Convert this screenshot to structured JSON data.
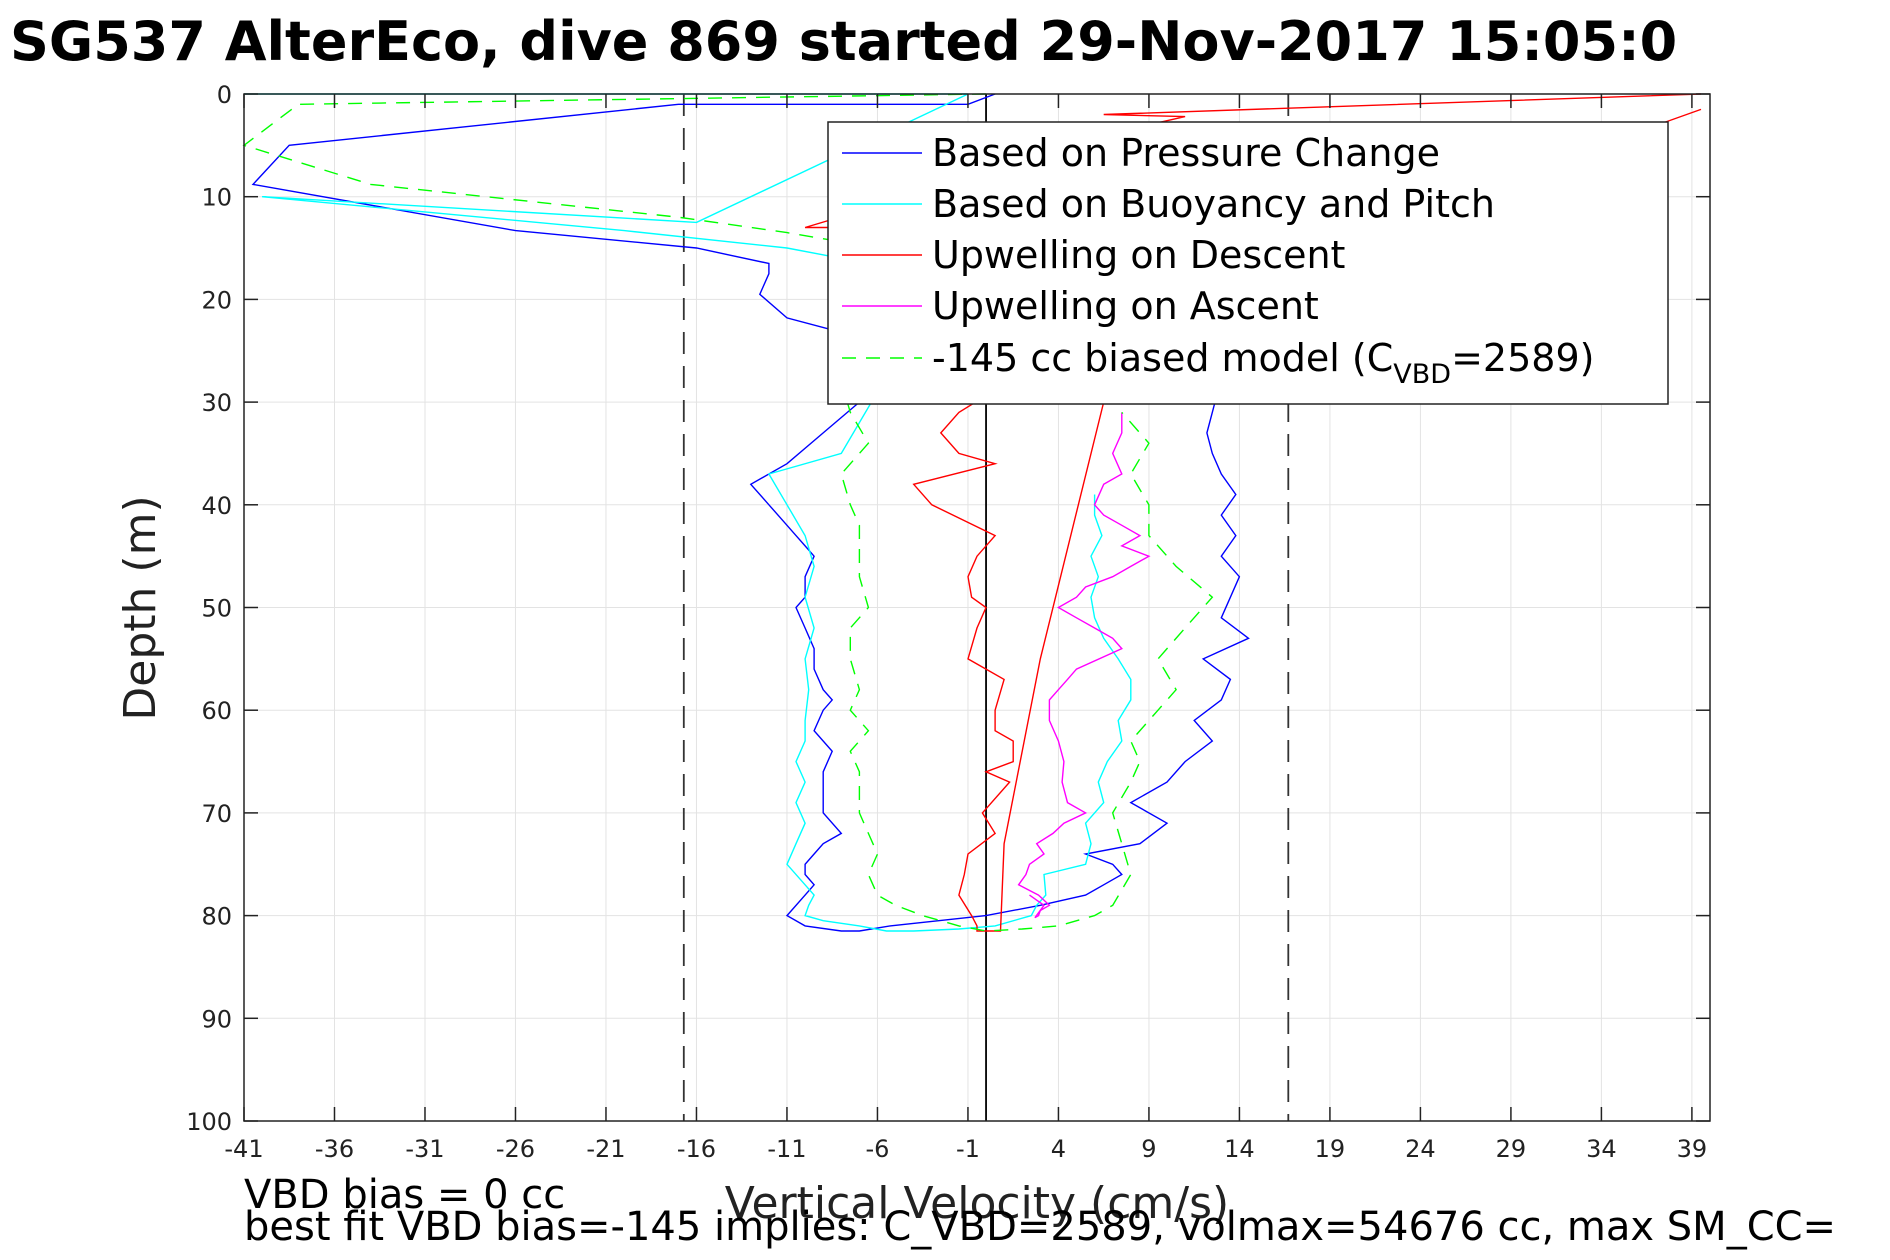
{
  "chart_data": {
    "type": "line",
    "title": "SG537 AlterEco, dive 869 started 29-Nov-2017 15:05:0",
    "xlabel": "Vertical Velocity (cm/s)",
    "ylabel": "Depth (m)",
    "xlim": [
      -41,
      40
    ],
    "ylim": [
      100,
      0
    ],
    "x_ticks": [
      -41,
      -36,
      -31,
      -26,
      -21,
      -16,
      -11,
      -6,
      -1,
      4,
      9,
      14,
      19,
      24,
      29,
      34,
      39
    ],
    "y_ticks": [
      0,
      10,
      20,
      30,
      40,
      50,
      60,
      70,
      80,
      90,
      100
    ],
    "grid": true,
    "legend_position": "top-right",
    "vertical_lines": [
      {
        "x": -16.7,
        "style": "dashed",
        "color": "#333333"
      },
      {
        "x": 16.7,
        "style": "dashed",
        "color": "#333333"
      },
      {
        "x": 0,
        "style": "solid",
        "color": "#000000"
      }
    ],
    "series": [
      {
        "name": "Based on Pressure Change",
        "color": "#0000ff",
        "dash": "solid",
        "x": [
          0.5,
          -1,
          -17,
          -38.5,
          -40.5,
          -26,
          -16,
          -12,
          -12,
          -12.5,
          -11,
          -8,
          -4,
          0,
          -2,
          -7,
          -9,
          -11,
          -13,
          -12,
          -11,
          -10.5,
          -10,
          -9.5,
          -10,
          -10,
          -10.5,
          -10,
          -9.5,
          -9.5,
          -9,
          -8.5,
          -9,
          -9.5,
          -8.5,
          -9,
          -9,
          -9,
          -8,
          -9,
          -9.5,
          -10,
          -10,
          -9.5,
          -10,
          -11,
          -10,
          -8,
          -7,
          -7,
          -5.3,
          0,
          3,
          5.5,
          6.5,
          7.5,
          7,
          5.5,
          8.5,
          10,
          8,
          10,
          11,
          12.5,
          11.5,
          13,
          13.5,
          12,
          14.5,
          13,
          13.5,
          14,
          13,
          13.8,
          13,
          13.8,
          13,
          12.5,
          12.2,
          12.5,
          12.8,
          12.5,
          11.5,
          5
        ],
        "y": [
          0,
          1,
          1,
          5,
          8.8,
          13.3,
          15,
          16.5,
          17.5,
          19.5,
          21.8,
          23.2,
          24,
          26,
          28,
          30,
          33,
          36,
          38,
          40,
          42,
          43,
          44,
          45,
          47,
          49,
          50,
          52,
          54,
          56,
          58,
          59,
          60,
          62,
          64,
          66,
          68,
          70,
          72,
          73,
          74,
          75,
          76,
          77,
          78,
          80,
          81,
          81.5,
          81.5,
          81.5,
          81,
          80,
          79,
          78,
          77,
          76,
          75,
          74,
          73,
          71,
          69,
          67,
          65,
          63,
          61,
          59,
          57,
          55,
          53,
          51,
          49,
          47,
          45,
          43,
          41,
          39,
          37,
          35,
          33,
          31,
          29,
          27,
          25,
          24
        ]
      },
      {
        "name": "Based on Buoyancy and Pitch",
        "color": "#00ffff",
        "dash": "solid",
        "x": [
          -41,
          -1,
          -16,
          -40,
          -20,
          -11,
          -5,
          -3,
          -5,
          -6,
          -8,
          -12,
          -11,
          -10,
          -9.5,
          -10,
          -9.5,
          -10,
          -9.8,
          -10,
          -10,
          -10.5,
          -10,
          -10.5,
          -10,
          -10.5,
          -11,
          -10,
          -9.5,
          -9.8,
          -10,
          -9,
          -7,
          -5.5,
          -4,
          -1.5,
          0.5,
          2.5,
          2.8,
          3.3,
          3.2,
          5.5,
          5.8,
          5.5,
          6.5,
          6.2,
          6.7,
          7.5,
          7.3,
          8.0,
          8.0,
          7.3,
          6.5,
          6,
          5.8,
          6.2,
          5.8,
          6.4,
          6.0,
          6.0
        ],
        "y": [
          0,
          0,
          12.5,
          10,
          13.3,
          15,
          17,
          20,
          25,
          29,
          35,
          37,
          40,
          43,
          46,
          49,
          52,
          55,
          58,
          61,
          63,
          65,
          67,
          69,
          71,
          73,
          75,
          77,
          78,
          79,
          80,
          80.5,
          81,
          81.5,
          81.5,
          81.3,
          81,
          80,
          79,
          78,
          76,
          75,
          73,
          71,
          69,
          67,
          65,
          63,
          61,
          59,
          57,
          55,
          53,
          51,
          49,
          47,
          45,
          43,
          41,
          39
        ]
      },
      {
        "name": "Upwelling on Descent",
        "color": "#ff0000",
        "dash": "solid",
        "x": [
          39.5,
          6.5,
          11,
          9,
          -10,
          -6,
          6,
          4,
          -1.5,
          -2.5,
          -1.5,
          0.5,
          -4,
          -3,
          0.5,
          -0.5,
          -1,
          -0.8,
          0,
          -0.5,
          -1,
          0,
          1,
          0.5,
          0.5,
          1.5,
          1.5,
          0,
          1.3,
          -0.2,
          0.5,
          -1,
          -1.2,
          -1.5,
          -0.8,
          -0.5,
          -0.5,
          0.8,
          1,
          3,
          6.5,
          10,
          39.5
        ],
        "y": [
          0,
          2,
          2.2,
          3,
          13,
          13,
          18,
          25,
          31,
          33,
          35,
          36,
          38,
          40,
          43,
          45,
          47,
          49,
          50,
          52,
          55,
          56,
          57,
          60,
          62,
          63,
          65,
          66,
          67,
          70,
          72,
          74,
          76,
          78,
          80,
          81,
          81.5,
          81.5,
          73,
          55,
          30,
          20,
          1.5
        ]
      },
      {
        "name": "Upwelling on Ascent",
        "color": "#ff00ff",
        "dash": "solid",
        "x": [
          7.5,
          7.5,
          7,
          7.5,
          6.5,
          6,
          6.5,
          7.5,
          8.5,
          7.5,
          9,
          8,
          7,
          5.5,
          5,
          4,
          5,
          6,
          7,
          7.5,
          5,
          4.5,
          4,
          3.5,
          3.5,
          4,
          4.3,
          4.2,
          4.5,
          5.5,
          4.3,
          3.7,
          2.8,
          3.2,
          2.4,
          2.2,
          1.8,
          2.9,
          3.5,
          3.0,
          2.9,
          2.7,
          3.2,
          2.4
        ],
        "y": [
          31,
          33,
          35,
          37,
          38,
          40,
          41,
          42,
          43,
          44,
          45,
          46,
          47,
          48,
          49,
          50,
          51,
          52,
          53,
          54,
          56,
          57,
          58,
          59,
          61,
          63,
          65,
          67,
          69,
          70,
          71,
          72,
          73,
          74,
          75,
          76,
          77,
          78,
          79,
          79.5,
          80,
          80.2,
          79,
          78
        ]
      },
      {
        "name": "-145 cc biased model (C<sub>VBD</sub>=2589)",
        "legend_label": "-145 cc biased model (C",
        "legend_sub": "VBD",
        "legend_suffix": "=2589)",
        "color": "#00ff00",
        "dash": "dashed",
        "x": [
          0,
          -38,
          -41,
          -34,
          -17,
          -11,
          -6,
          -7.5,
          -6,
          -8,
          -7.5,
          -6.5,
          -8,
          -7.5,
          -7,
          -7,
          -7,
          -6.5,
          -7.5,
          -7.5,
          -7,
          -7.5,
          -6.5,
          -7.5,
          -7,
          -7,
          -7,
          -6.5,
          -6,
          -6.5,
          -6,
          -5,
          -3.5,
          -1.5,
          0,
          2,
          4,
          6,
          7,
          8,
          7.5,
          7,
          8,
          8.5,
          8,
          9.5,
          10.5,
          9.5,
          11,
          12.5,
          10.5,
          9,
          9,
          8,
          9,
          7.5
        ],
        "y": [
          0,
          1,
          5,
          8.8,
          12,
          13.5,
          15,
          22,
          25,
          28,
          31,
          34,
          37,
          40,
          42,
          44,
          47,
          50,
          52,
          55,
          58,
          60,
          62,
          64,
          66,
          68,
          70,
          72,
          74,
          76,
          78,
          79,
          80,
          81,
          81.5,
          81.3,
          81,
          80,
          79,
          76,
          73,
          70,
          67,
          65,
          63,
          60,
          58,
          55,
          52,
          49,
          46,
          43,
          40,
          37,
          34,
          31
        ]
      }
    ],
    "annotations": [
      "VBD bias = 0 cc",
      "best fit VBD bias=-145 implies: C_VBD=2589, volmax=54676 cc, max SM_CC="
    ]
  }
}
